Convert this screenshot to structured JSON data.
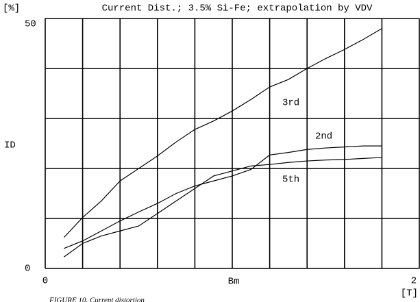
{
  "chart_data": {
    "type": "line",
    "title": "Current Dist.; 3.5% Si-Fe; extrapolation by VDV",
    "y_unit": "[%]",
    "ylabel": "ID",
    "xlabel": "Bm",
    "x_unit": "[T]",
    "caption": "FIGURE 10. Current distortion",
    "x": [
      0.1,
      0.2,
      0.3,
      0.4,
      0.5,
      0.6,
      0.7,
      0.8,
      0.9,
      1.0,
      1.1,
      1.2,
      1.3,
      1.4,
      1.5,
      1.6,
      1.7,
      1.8
    ],
    "series": [
      {
        "name": "3rd",
        "color": "#000000",
        "values": [
          6.2,
          10.2,
          13.5,
          17.5,
          20.0,
          22.5,
          25.3,
          27.8,
          29.5,
          31.5,
          33.8,
          36.3,
          37.8,
          40.0,
          42.0,
          43.8,
          45.8,
          48.0
        ]
      },
      {
        "name": "2nd",
        "color": "#000000",
        "values": [
          4.0,
          5.5,
          7.5,
          9.5,
          11.3,
          13.0,
          15.0,
          16.5,
          17.5,
          18.5,
          19.8,
          22.7,
          23.2,
          23.8,
          24.1,
          24.3,
          24.5,
          24.5
        ]
      },
      {
        "name": "5th",
        "color": "#000000",
        "values": [
          2.3,
          5.0,
          6.5,
          7.5,
          8.5,
          11.0,
          13.5,
          16.0,
          18.5,
          19.5,
          20.5,
          20.8,
          21.2,
          21.5,
          21.7,
          21.8,
          22.0,
          22.2
        ]
      }
    ],
    "xlim": [
      0,
      2
    ],
    "ylim": [
      0,
      50
    ],
    "xticks": [
      0,
      2
    ],
    "yticks": [
      0,
      50
    ],
    "xgrid": [
      0,
      0.2,
      0.4,
      0.6,
      0.8,
      1.0,
      1.2,
      1.4,
      1.6,
      1.8,
      2.0
    ],
    "ygrid": [
      0,
      10,
      20,
      30,
      40,
      50
    ],
    "grid": true
  }
}
